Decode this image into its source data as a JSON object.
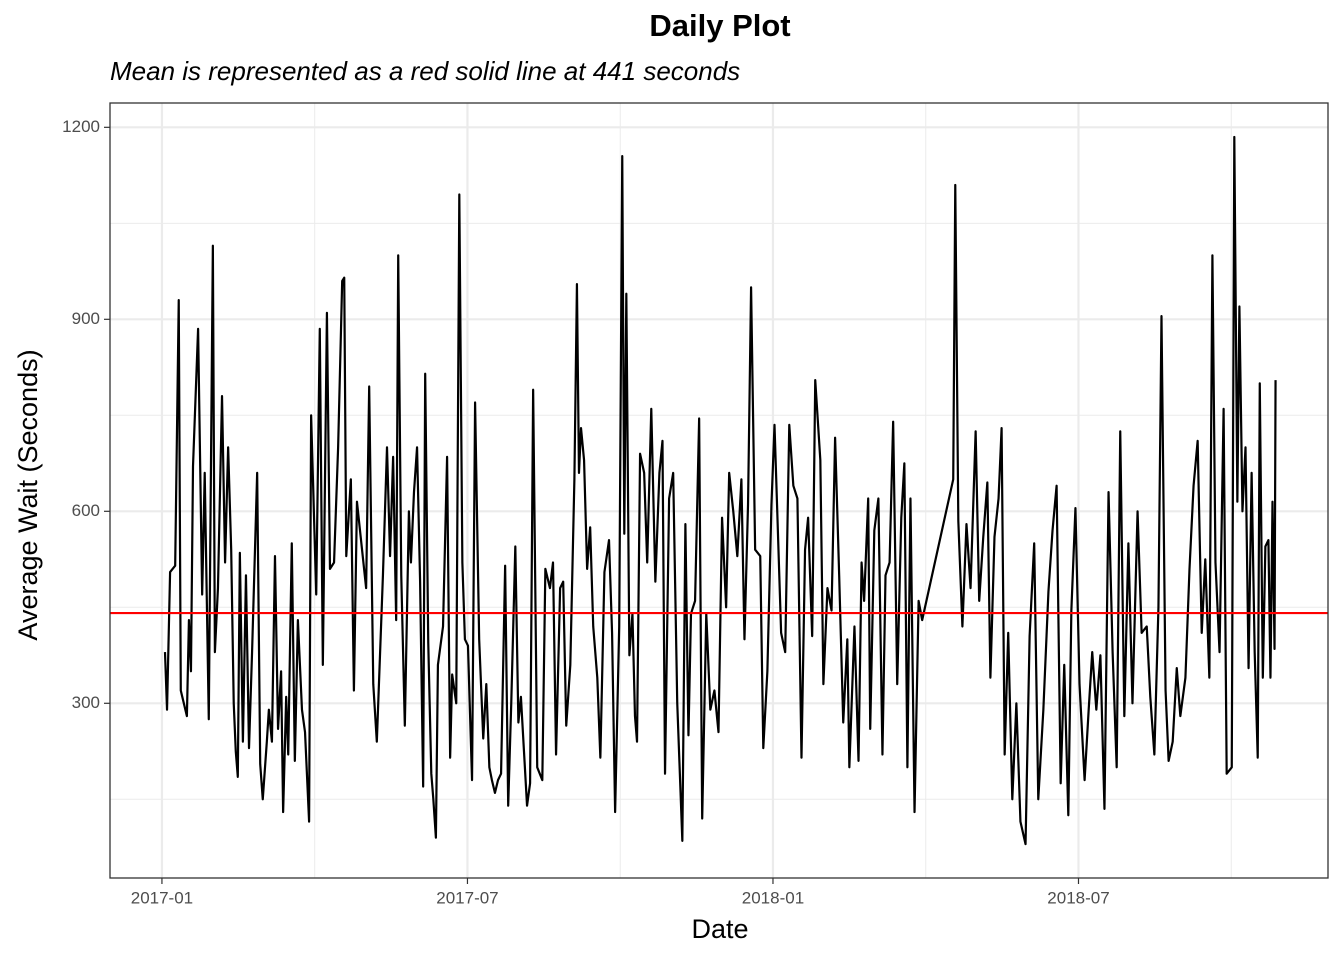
{
  "chart_data": {
    "type": "line",
    "title": "Daily Plot",
    "subtitle": "Mean is represented as a red solid line at 441 seconds",
    "x_label": "Date",
    "y_label": "Average Wait (Seconds)",
    "xlim": [
      -1.02,
      22.9
    ],
    "ylim": [
      27,
      1238
    ],
    "xticks": [
      {
        "value": 0,
        "label": "2017-01"
      },
      {
        "value": 6,
        "label": "2017-07"
      },
      {
        "value": 12,
        "label": "2018-01"
      },
      {
        "value": 18,
        "label": "2018-07"
      }
    ],
    "yticks": [
      300,
      600,
      900,
      1200
    ],
    "xminorticks": [
      3,
      9,
      15,
      21
    ],
    "yminorticks": [
      150,
      450,
      750,
      1050
    ],
    "grid": true,
    "mean_line": {
      "value": 441,
      "color": "#ff0000"
    },
    "series": [
      {
        "name": "Average Wait",
        "color": "#000000",
        "x": [
          0.06,
          0.1,
          0.16,
          0.26,
          0.33,
          0.37,
          0.49,
          0.53,
          0.57,
          0.61,
          0.71,
          0.79,
          0.84,
          0.92,
          1.0,
          1.04,
          1.1,
          1.18,
          1.24,
          1.3,
          1.36,
          1.41,
          1.45,
          1.49,
          1.53,
          1.59,
          1.65,
          1.71,
          1.77,
          1.87,
          1.93,
          1.98,
          2.06,
          2.1,
          2.16,
          2.22,
          2.28,
          2.34,
          2.38,
          2.44,
          2.48,
          2.55,
          2.61,
          2.67,
          2.75,
          2.81,
          2.89,
          2.93,
          3.03,
          3.1,
          3.16,
          3.24,
          3.3,
          3.38,
          3.46,
          3.54,
          3.58,
          3.62,
          3.71,
          3.77,
          3.83,
          3.93,
          4.01,
          4.07,
          4.15,
          4.22,
          4.34,
          4.42,
          4.48,
          4.54,
          4.6,
          4.64,
          4.7,
          4.77,
          4.85,
          4.89,
          4.95,
          5.01,
          5.07,
          5.13,
          5.17,
          5.23,
          5.29,
          5.33,
          5.38,
          5.42,
          5.52,
          5.6,
          5.66,
          5.7,
          5.78,
          5.84,
          5.9,
          5.95,
          6.01,
          6.09,
          6.15,
          6.23,
          6.31,
          6.37,
          6.43,
          6.48,
          6.54,
          6.6,
          6.66,
          6.74,
          6.8,
          6.86,
          6.94,
          7.0,
          7.05,
          7.11,
          7.17,
          7.23,
          7.29,
          7.37,
          7.47,
          7.53,
          7.62,
          7.68,
          7.74,
          7.82,
          7.88,
          7.94,
          8.02,
          8.1,
          8.15,
          8.19,
          8.23,
          8.29,
          8.35,
          8.41,
          8.47,
          8.55,
          8.61,
          8.69,
          8.78,
          8.84,
          8.9,
          8.98,
          9.04,
          9.08,
          9.12,
          9.18,
          9.24,
          9.29,
          9.33,
          9.39,
          9.47,
          9.53,
          9.61,
          9.69,
          9.77,
          9.83,
          9.88,
          9.96,
          10.04,
          10.12,
          10.22,
          10.28,
          10.34,
          10.39,
          10.47,
          10.55,
          10.61,
          10.69,
          10.77,
          10.85,
          10.93,
          11.0,
          11.08,
          11.14,
          11.22,
          11.3,
          11.38,
          11.44,
          11.51,
          11.57,
          11.65,
          11.75,
          11.81,
          11.89,
          11.97,
          12.03,
          12.08,
          12.16,
          12.24,
          12.32,
          12.4,
          12.48,
          12.56,
          12.63,
          12.69,
          12.77,
          12.83,
          12.93,
          12.99,
          13.07,
          13.15,
          13.22,
          13.3,
          13.38,
          13.46,
          13.5,
          13.6,
          13.68,
          13.74,
          13.79,
          13.87,
          13.91,
          13.99,
          14.07,
          14.15,
          14.21,
          14.29,
          14.36,
          14.44,
          14.52,
          14.58,
          14.64,
          14.7,
          14.78,
          14.86,
          14.93,
          15.54,
          15.58,
          15.64,
          15.72,
          15.8,
          15.88,
          15.98,
          16.05,
          16.13,
          16.21,
          16.27,
          16.35,
          16.43,
          16.49,
          16.55,
          16.62,
          16.7,
          16.78,
          16.86,
          16.96,
          17.04,
          17.13,
          17.21,
          17.31,
          17.41,
          17.49,
          17.57,
          17.65,
          17.72,
          17.8,
          17.86,
          17.94,
          18.02,
          18.12,
          18.2,
          18.27,
          18.35,
          18.43,
          18.51,
          18.59,
          18.67,
          18.75,
          18.82,
          18.9,
          18.98,
          19.06,
          19.16,
          19.24,
          19.34,
          19.41,
          19.49,
          19.57,
          19.63,
          19.71,
          19.77,
          19.85,
          19.93,
          20.0,
          20.1,
          20.18,
          20.26,
          20.34,
          20.42,
          20.49,
          20.57,
          20.63,
          20.69,
          20.77,
          20.85,
          20.91,
          21.01,
          21.06,
          21.12,
          21.16,
          21.22,
          21.28,
          21.34,
          21.4,
          21.46,
          21.52,
          21.56,
          21.62,
          21.67,
          21.73,
          21.77,
          21.81,
          21.85,
          21.87
        ],
        "values": [
          380,
          290,
          505,
          515,
          930,
          320,
          280,
          430,
          350,
          670,
          885,
          470,
          660,
          275,
          1015,
          380,
          480,
          780,
          520,
          700,
          540,
          300,
          225,
          185,
          535,
          240,
          500,
          230,
          380,
          660,
          205,
          150,
          240,
          290,
          240,
          530,
          260,
          350,
          130,
          310,
          220,
          550,
          210,
          430,
          290,
          255,
          115,
          750,
          470,
          885,
          360,
          910,
          510,
          520,
          700,
          960,
          965,
          530,
          650,
          320,
          615,
          540,
          480,
          795,
          330,
          240,
          500,
          700,
          530,
          685,
          430,
          1000,
          500,
          265,
          600,
          520,
          630,
          700,
          490,
          170,
          815,
          395,
          190,
          150,
          90,
          360,
          420,
          685,
          215,
          345,
          300,
          1095,
          520,
          400,
          390,
          180,
          770,
          400,
          245,
          330,
          200,
          180,
          160,
          180,
          190,
          515,
          140,
          300,
          545,
          270,
          310,
          225,
          140,
          175,
          790,
          200,
          180,
          510,
          480,
          520,
          220,
          480,
          490,
          265,
          360,
          650,
          955,
          660,
          730,
          680,
          510,
          575,
          420,
          340,
          215,
          505,
          555,
          410,
          130,
          420,
          1155,
          565,
          940,
          375,
          440,
          280,
          240,
          690,
          660,
          520,
          760,
          490,
          660,
          710,
          190,
          620,
          660,
          300,
          85,
          580,
          250,
          440,
          460,
          745,
          120,
          440,
          290,
          320,
          255,
          590,
          450,
          660,
          600,
          530,
          650,
          400,
          610,
          950,
          540,
          530,
          230,
          350,
          610,
          735,
          610,
          410,
          380,
          735,
          640,
          620,
          215,
          540,
          590,
          405,
          805,
          680,
          330,
          480,
          445,
          715,
          500,
          270,
          400,
          200,
          420,
          210,
          520,
          460,
          620,
          260,
          570,
          620,
          220,
          500,
          520,
          740,
          330,
          590,
          675,
          200,
          620,
          130,
          460,
          430,
          650,
          1110,
          585,
          420,
          580,
          480,
          725,
          460,
          560,
          645,
          340,
          560,
          620,
          730,
          220,
          410,
          150,
          300,
          115,
          80,
          405,
          550,
          150,
          290,
          475,
          570,
          640,
          175,
          360,
          125,
          445,
          605,
          330,
          180,
          290,
          380,
          290,
          375,
          135,
          630,
          380,
          200,
          725,
          280,
          550,
          300,
          600,
          410,
          420,
          310,
          220,
          450,
          905,
          320,
          210,
          240,
          355,
          280,
          340,
          510,
          640,
          710,
          410,
          525,
          340,
          1000,
          520,
          380,
          760,
          190,
          200,
          1185,
          615,
          920,
          600,
          700,
          355,
          660,
          380,
          215,
          800,
          340,
          545,
          555,
          340,
          615,
          385,
          805
        ]
      }
    ]
  }
}
